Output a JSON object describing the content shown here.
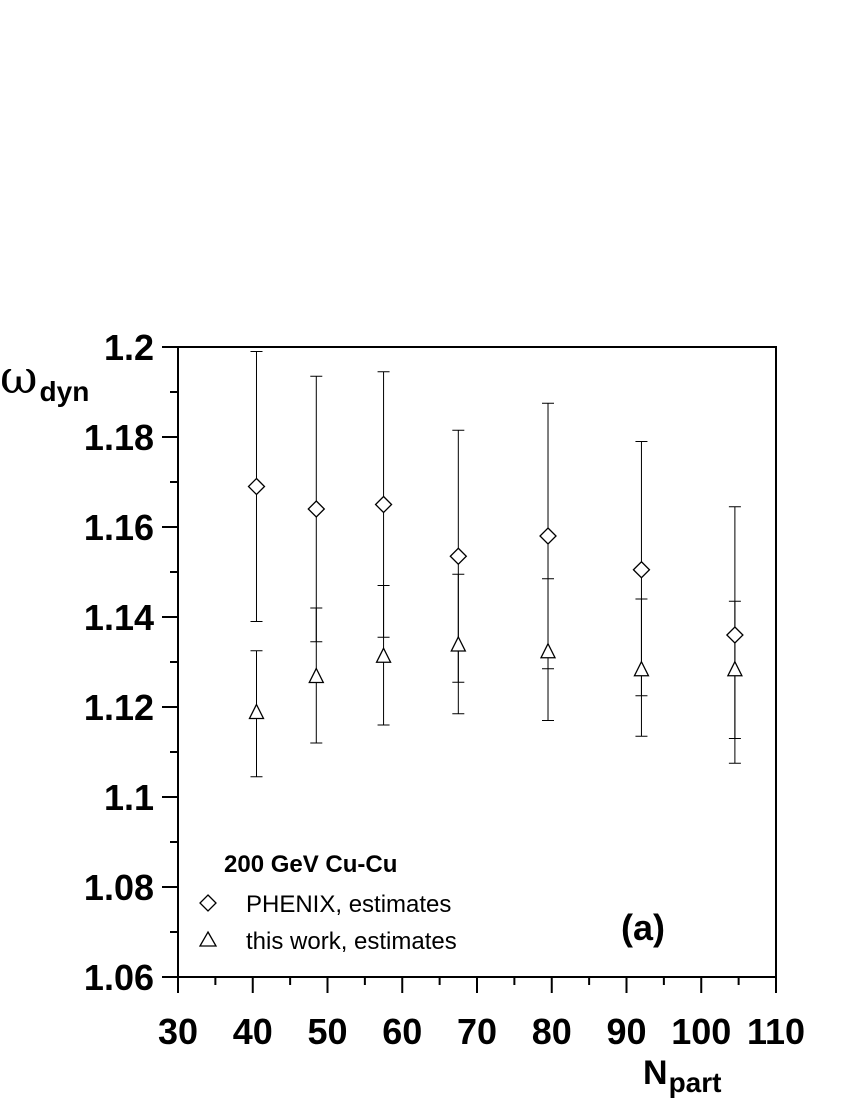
{
  "chart_data": {
    "type": "scatter",
    "xlim": [
      30,
      110
    ],
    "ylim": [
      1.06,
      1.2
    ],
    "x_ticks": [
      30,
      40,
      50,
      60,
      70,
      80,
      90,
      100,
      110
    ],
    "y_ticks": [
      1.06,
      1.08,
      1.1,
      1.12,
      1.14,
      1.16,
      1.18,
      1.2
    ],
    "x_tick_labels": [
      "30",
      "40",
      "50",
      "60",
      "70",
      "80",
      "90",
      "100",
      "110"
    ],
    "y_tick_labels": [
      "1.06",
      "1.08",
      "1.1",
      "1.12",
      "1.14",
      "1.16",
      "1.18",
      "1.2"
    ],
    "ylabel": {
      "symbol": "ω",
      "subscript": "dyn"
    },
    "xlabel": {
      "main": "N",
      "subscript": "part"
    },
    "grid": false,
    "legend_title": "200 GeV Cu-Cu",
    "legend_position": "bottom-left",
    "annotation": "(a)",
    "series": [
      {
        "name": "PHENIX, estimates",
        "marker": "diamond",
        "points": [
          {
            "x": 40.5,
            "y": 1.169,
            "y_high": 1.199,
            "y_low": 1.139
          },
          {
            "x": 48.5,
            "y": 1.164,
            "y_high": 1.1935,
            "y_low": 1.1345
          },
          {
            "x": 57.5,
            "y": 1.165,
            "y_high": 1.1945,
            "y_low": 1.1355
          },
          {
            "x": 67.5,
            "y": 1.1535,
            "y_high": 1.1815,
            "y_low": 1.1255
          },
          {
            "x": 79.5,
            "y": 1.158,
            "y_high": 1.1875,
            "y_low": 1.1285
          },
          {
            "x": 92.0,
            "y": 1.1505,
            "y_high": 1.179,
            "y_low": 1.1225
          },
          {
            "x": 104.5,
            "y": 1.136,
            "y_high": 1.1645,
            "y_low": 1.1075
          }
        ]
      },
      {
        "name": "this work, estimates",
        "marker": "triangle",
        "points": [
          {
            "x": 40.5,
            "y": 1.119,
            "y_high": 1.1325,
            "y_low": 1.1045
          },
          {
            "x": 48.5,
            "y": 1.127,
            "y_high": 1.142,
            "y_low": 1.112
          },
          {
            "x": 57.5,
            "y": 1.1315,
            "y_high": 1.147,
            "y_low": 1.116
          },
          {
            "x": 67.5,
            "y": 1.134,
            "y_high": 1.1495,
            "y_low": 1.1185
          },
          {
            "x": 79.5,
            "y": 1.1325,
            "y_high": 1.1485,
            "y_low": 1.117
          },
          {
            "x": 92.0,
            "y": 1.1285,
            "y_high": 1.144,
            "y_low": 1.1135
          },
          {
            "x": 104.5,
            "y": 1.1285,
            "y_high": 1.1435,
            "y_low": 1.113
          }
        ]
      }
    ]
  }
}
